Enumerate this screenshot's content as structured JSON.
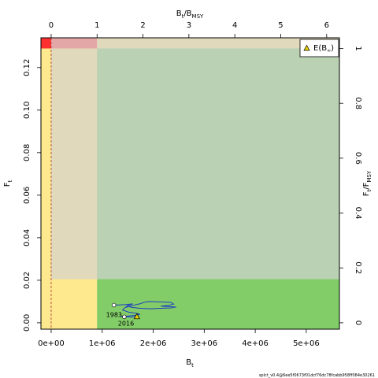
{
  "chart_data": {
    "type": "line",
    "xlabel": "B",
    "xlabel_sub": "t",
    "ylabel": "F",
    "ylabel_sub": "t",
    "top_label": "B",
    "top_label_sub": "t",
    "top_label_mid": "/B",
    "top_label_sub2": "MSY",
    "right_label": "F",
    "right_label_sub": "t",
    "right_label_mid": "/F",
    "right_label_sub2": "MSY",
    "xlim": [
      -200000,
      5650000
    ],
    "ylim": [
      -0.003,
      0.134
    ],
    "x_ticks": [
      0,
      1000000,
      2000000,
      3000000,
      4000000,
      5000000
    ],
    "x_tick_labels": [
      "0e+00",
      "1e+06",
      "2e+06",
      "3e+06",
      "4e+06",
      "5e+06"
    ],
    "y_ticks": [
      0,
      0.02,
      0.04,
      0.06,
      0.08,
      0.1,
      0.12
    ],
    "y_tick_labels": [
      "0.00",
      "0.02",
      "0.04",
      "0.06",
      "0.08",
      "0.10",
      "0.12"
    ],
    "top_ticks": [
      0,
      1,
      2,
      3,
      4,
      5,
      6
    ],
    "top_tick_labels": [
      "0",
      "1",
      "2",
      "3",
      "4",
      "5",
      "6"
    ],
    "right_ticks": [
      0,
      0.2,
      0.4,
      0.6,
      0.8,
      1
    ],
    "right_tick_labels": [
      "0",
      "0.2",
      "0.4",
      "0.6",
      "0.8",
      "1"
    ],
    "bmsy": 900000,
    "fmsy": 0.129,
    "series": [
      {
        "color": "#1f3fbf",
        "points": [
          [
            1230000,
            0.0083
          ],
          [
            1450000,
            0.0085
          ],
          [
            1600000,
            0.0089
          ],
          [
            1520000,
            0.0083
          ],
          [
            1480000,
            0.0078
          ],
          [
            1600000,
            0.0072
          ],
          [
            1750000,
            0.0068
          ],
          [
            1950000,
            0.0066
          ],
          [
            2150000,
            0.0068
          ],
          [
            2350000,
            0.007
          ],
          [
            2450000,
            0.0074
          ],
          [
            2300000,
            0.0076
          ],
          [
            2150000,
            0.0078
          ],
          [
            2300000,
            0.0082
          ],
          [
            2400000,
            0.0088
          ],
          [
            2350000,
            0.0096
          ],
          [
            2150000,
            0.0098
          ],
          [
            1920000,
            0.01
          ],
          [
            1830000,
            0.0097
          ],
          [
            1750000,
            0.009
          ],
          [
            1600000,
            0.0082
          ],
          [
            1450000,
            0.0072
          ],
          [
            1400000,
            0.006
          ],
          [
            1520000,
            0.005
          ],
          [
            1680000,
            0.0044
          ],
          [
            1740000,
            0.004
          ],
          [
            1650000,
            0.0035
          ],
          [
            1480000,
            0.0031
          ],
          [
            1350000,
            0.003
          ],
          [
            1450000,
            0.0028
          ],
          [
            1560000,
            0.0027
          ],
          [
            1680000,
            0.0028
          ]
        ]
      }
    ],
    "start_label": "1983",
    "end_label": "2016",
    "expected_point": [
      1680000,
      0.003
    ],
    "legend_label": "E(B",
    "legend_label_sub": "∞",
    "legend_label_end": ")",
    "legend_position": "top-right",
    "colors": {
      "green": "#82cd68",
      "yellow": "#ffe98f",
      "red": "#ff3030",
      "light_green": "#bad1b3",
      "light_yellow": "#e0d9bb",
      "light_red": "#e4a7a7",
      "grey_strip": "#cce0ca",
      "line": "#1f3fbf",
      "expected_fill": "#e8d200"
    }
  },
  "footer": "splct_v0.4@6ee5f0673f01dcf76dc78fcabb958ff084e30261"
}
